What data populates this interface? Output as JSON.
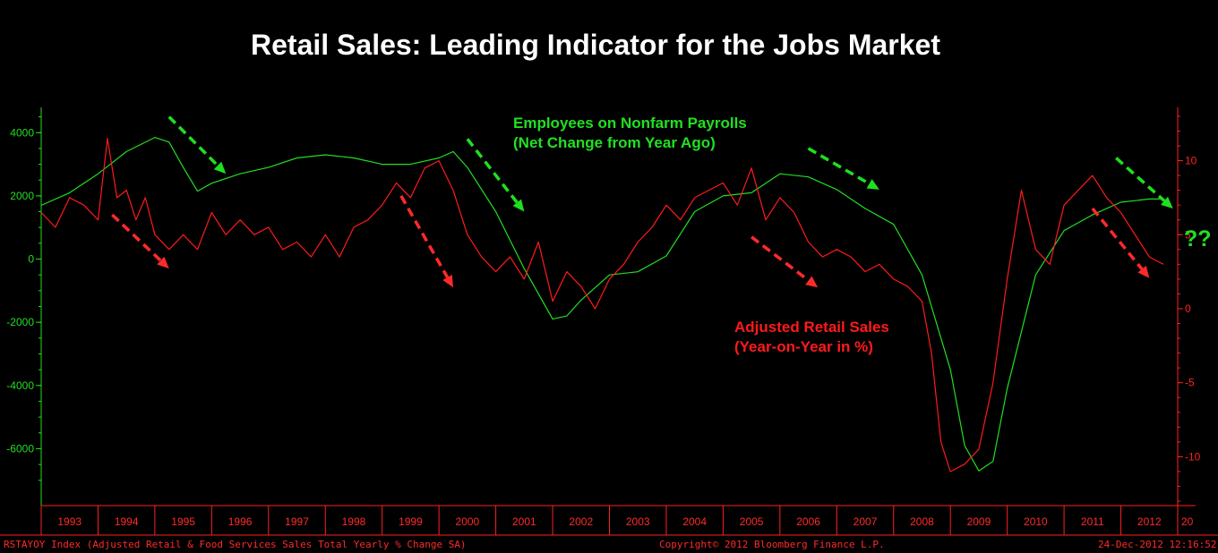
{
  "chart_data": {
    "type": "line",
    "title": "Retail Sales: Leading Indicator for the Jobs Market",
    "x_range": [
      "1993-01",
      "2012-12"
    ],
    "x_ticks": [
      "1993",
      "1994",
      "1995",
      "1996",
      "1997",
      "1998",
      "1999",
      "2000",
      "2001",
      "2002",
      "2003",
      "2004",
      "2005",
      "2006",
      "2007",
      "2008",
      "2009",
      "2010",
      "2011",
      "2012",
      "20"
    ],
    "y_left": {
      "ticks": [
        4000,
        2000,
        0,
        -2000,
        -4000,
        -6000
      ],
      "ylim": [
        -7800,
        4800
      ],
      "color": "#22dd22"
    },
    "y_right": {
      "ticks": [
        10,
        5,
        0,
        -5,
        -10
      ],
      "ylim": [
        -13.3,
        13.6
      ],
      "color": "#ff2020"
    },
    "series": [
      {
        "name": "Employees on Nonfarm Payrolls (Net Change from Year Ago)",
        "axis": "left",
        "color": "#22dd22",
        "x": [
          "1993-01",
          "1993-07",
          "1994-01",
          "1994-07",
          "1995-01",
          "1995-04",
          "1995-07",
          "1995-10",
          "1996-01",
          "1996-07",
          "1997-01",
          "1997-07",
          "1998-01",
          "1998-07",
          "1999-01",
          "1999-07",
          "2000-01",
          "2000-04",
          "2000-07",
          "2001-01",
          "2001-07",
          "2002-01",
          "2002-04",
          "2002-07",
          "2003-01",
          "2003-07",
          "2004-01",
          "2004-07",
          "2005-01",
          "2005-07",
          "2006-01",
          "2006-07",
          "2007-01",
          "2007-07",
          "2008-01",
          "2008-07",
          "2009-01",
          "2009-04",
          "2009-07",
          "2009-10",
          "2010-01",
          "2010-07",
          "2011-01",
          "2011-07",
          "2012-01",
          "2012-07",
          "2012-10"
        ],
        "values": [
          1700,
          2100,
          2700,
          3400,
          3850,
          3700,
          2900,
          2150,
          2400,
          2700,
          2900,
          3200,
          3300,
          3200,
          3000,
          3000,
          3200,
          3400,
          2900,
          1500,
          -300,
          -1900,
          -1800,
          -1300,
          -500,
          -400,
          100,
          1500,
          2000,
          2100,
          2700,
          2600,
          2200,
          1600,
          1100,
          -500,
          -3500,
          -5900,
          -6700,
          -6400,
          -4100,
          -500,
          900,
          1400,
          1800,
          1900,
          1900
        ]
      },
      {
        "name": "Adjusted Retail Sales (Year-on-Year in %)",
        "axis": "right",
        "color": "#ff1a1a",
        "x": [
          "1993-01",
          "1993-04",
          "1993-07",
          "1993-10",
          "1994-01",
          "1994-03",
          "1994-05",
          "1994-07",
          "1994-09",
          "1994-11",
          "1995-01",
          "1995-04",
          "1995-07",
          "1995-10",
          "1996-01",
          "1996-04",
          "1996-07",
          "1996-10",
          "1997-01",
          "1997-04",
          "1997-07",
          "1997-10",
          "1998-01",
          "1998-04",
          "1998-07",
          "1998-10",
          "1999-01",
          "1999-04",
          "1999-07",
          "1999-10",
          "2000-01",
          "2000-04",
          "2000-07",
          "2000-10",
          "2001-01",
          "2001-04",
          "2001-07",
          "2001-10",
          "2002-01",
          "2002-04",
          "2002-07",
          "2002-10",
          "2003-01",
          "2003-04",
          "2003-07",
          "2003-10",
          "2004-01",
          "2004-04",
          "2004-07",
          "2004-10",
          "2005-01",
          "2005-04",
          "2005-07",
          "2005-10",
          "2006-01",
          "2006-04",
          "2006-07",
          "2006-10",
          "2007-01",
          "2007-04",
          "2007-07",
          "2007-10",
          "2008-01",
          "2008-04",
          "2008-07",
          "2008-09",
          "2008-11",
          "2009-01",
          "2009-04",
          "2009-07",
          "2009-10",
          "2010-01",
          "2010-04",
          "2010-07",
          "2010-10",
          "2011-01",
          "2011-04",
          "2011-07",
          "2011-10",
          "2012-01",
          "2012-04",
          "2012-07",
          "2012-10"
        ],
        "values": [
          6.5,
          5.5,
          7.5,
          7.0,
          6.0,
          11.5,
          7.5,
          8.0,
          6.0,
          7.5,
          5.0,
          4.0,
          5.0,
          4.0,
          6.5,
          5.0,
          6.0,
          5.0,
          5.5,
          4.0,
          4.5,
          3.5,
          5.0,
          3.5,
          5.5,
          6.0,
          7.0,
          8.5,
          7.5,
          9.5,
          10.0,
          8.0,
          5.0,
          3.5,
          2.5,
          3.5,
          2.0,
          4.5,
          0.5,
          2.5,
          1.5,
          0.0,
          2.0,
          3.0,
          4.5,
          5.5,
          7.0,
          6.0,
          7.5,
          8.0,
          8.5,
          7.0,
          9.5,
          6.0,
          7.5,
          6.5,
          4.5,
          3.5,
          4.0,
          3.5,
          2.5,
          3.0,
          2.0,
          1.5,
          0.5,
          -3.0,
          -9.0,
          -11.0,
          -10.5,
          -9.5,
          -5.0,
          2.0,
          8.0,
          4.0,
          3.0,
          7.0,
          8.0,
          9.0,
          7.5,
          6.5,
          5.0,
          3.5,
          3.0
        ]
      }
    ],
    "annotations": [
      {
        "id": "payrolls",
        "color": "green",
        "lines": [
          "Employees on Nonfarm Payrolls",
          "(Net Change from Year Ago)"
        ]
      },
      {
        "id": "retail",
        "color": "red",
        "lines": [
          "Adjusted Retail Sales",
          "(Year-on-Year in %)"
        ]
      }
    ],
    "trend_arrows": [
      {
        "color": "#1ee01e",
        "from": [
          "1995-04",
          4500
        ],
        "to": [
          "1996-04",
          2700
        ]
      },
      {
        "color": "#1ee01e",
        "from": [
          "2000-07",
          3800
        ],
        "to": [
          "2001-07",
          1500
        ]
      },
      {
        "color": "#1ee01e",
        "from": [
          "2006-07",
          3500
        ],
        "to": [
          "2007-10",
          2200
        ]
      },
      {
        "color": "#1ee01e",
        "from": [
          "2011-12",
          3200
        ],
        "to": [
          "2012-12",
          1600
        ]
      },
      {
        "color": "#ff2a2a",
        "from": [
          "1994-04",
          1400
        ],
        "to": [
          "1995-04",
          -300
        ]
      },
      {
        "color": "#ff2a2a",
        "from": [
          "1999-05",
          2000
        ],
        "to": [
          "2000-04",
          -900
        ]
      },
      {
        "color": "#ff2a2a",
        "from": [
          "2005-07",
          700
        ],
        "to": [
          "2006-09",
          -900
        ]
      },
      {
        "color": "#ff2a2a",
        "from": [
          "2011-07",
          1600
        ],
        "to": [
          "2012-07",
          -600
        ]
      }
    ]
  },
  "question_marks": "??",
  "footer": {
    "left": "RSTAYOY Index (Adjusted Retail & Food Services Sales Total Yearly % Change SA)",
    "center": "Copyright© 2012 Bloomberg Finance L.P.",
    "right": "24-Dec-2012 12:16:52"
  }
}
